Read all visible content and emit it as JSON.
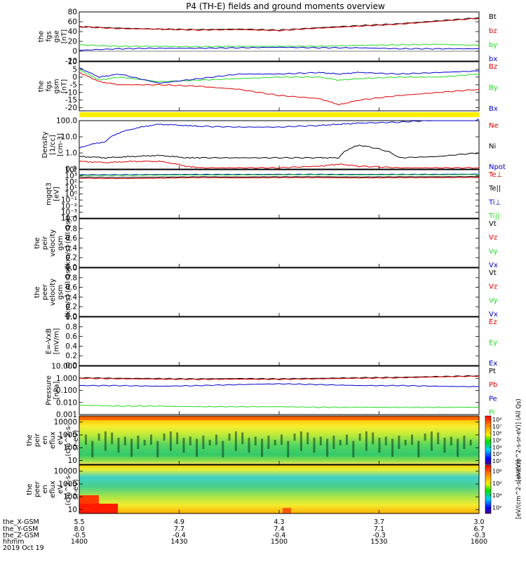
{
  "title": "P4 (TH-E) fields and ground moments overview",
  "colors": {
    "black": "#000000",
    "red": "#dd0000",
    "green": "#22dd22",
    "blue": "#0000cc",
    "bar": "#ffee00"
  },
  "chart_data": [
    {
      "panel": "fgs-gse",
      "type": "line",
      "ylabel": [
        "the",
        "fgs",
        "gse",
        "[nT]"
      ],
      "ylim": [
        -20,
        80
      ],
      "ytick_values": [
        -20,
        0,
        20,
        40,
        60,
        80
      ],
      "ytick_labels": [
        "-20",
        "0",
        "20",
        "40",
        "60",
        "80"
      ],
      "zero_line": true,
      "x": [
        0,
        30,
        60,
        90,
        120,
        150,
        180,
        210,
        240,
        270,
        300
      ],
      "series": [
        {
          "name": "Bt",
          "color": "black",
          "values": [
            50,
            47,
            45,
            44,
            45,
            43,
            48,
            52,
            56,
            62,
            68
          ]
        },
        {
          "name": "bz",
          "color": "red",
          "values": [
            50,
            46,
            45,
            43,
            44,
            42,
            47,
            51,
            55,
            61,
            67
          ]
        },
        {
          "name": "by",
          "color": "green",
          "values": [
            13,
            10,
            10,
            9,
            10,
            10,
            10,
            12,
            13,
            14,
            12
          ]
        },
        {
          "name": "bx",
          "color": "blue",
          "values": [
            2,
            5,
            6,
            6,
            7,
            8,
            7,
            7,
            5,
            5,
            5
          ]
        }
      ]
    },
    {
      "panel": "fgs-gsm",
      "type": "line",
      "ylabel": [
        "the",
        "fgs",
        "gsm",
        "[nT]"
      ],
      "ylim": [
        -22,
        10
      ],
      "ytick_values": [
        -20,
        -15,
        -10,
        -5,
        0,
        5,
        10
      ],
      "ytick_labels": [
        "-20",
        "-15",
        "-10",
        "-5",
        "0",
        "5",
        "10"
      ],
      "zero_line": false,
      "x": [
        0,
        15,
        30,
        60,
        90,
        120,
        150,
        180,
        195,
        210,
        240,
        270,
        300
      ],
      "series": [
        {
          "name": "Bz",
          "color": "red",
          "values": [
            3,
            -3,
            -5,
            -5,
            -6,
            -8,
            -12,
            -14,
            -18,
            -15,
            -12,
            -10,
            -8
          ]
        },
        {
          "name": "By",
          "color": "green",
          "values": [
            5,
            -2,
            0,
            -3,
            -2,
            -1,
            0,
            0,
            -2,
            -1,
            0,
            0,
            2
          ]
        },
        {
          "name": "Bx",
          "color": "blue",
          "values": [
            6,
            0,
            2,
            -4,
            -1,
            2,
            2,
            3,
            2,
            3,
            2,
            3,
            4
          ]
        }
      ]
    },
    {
      "panel": "density",
      "type": "line",
      "yscale": "log",
      "ylabel": [
        "Density",
        "[1/cc]",
        "[cm-3]"
      ],
      "ylim": [
        0.1,
        100
      ],
      "ytick_values": [
        0.1,
        1,
        10,
        100
      ],
      "ytick_labels": [
        "0.1",
        "1.0",
        "10.0",
        "100.0"
      ],
      "zero_line": false,
      "x": [
        0,
        20,
        40,
        60,
        80,
        90,
        120,
        150,
        180,
        195,
        210,
        240,
        270,
        300
      ],
      "series": [
        {
          "name": "Ne",
          "color": "red",
          "values": [
            0.3,
            0.25,
            0.3,
            0.3,
            0.15,
            0.12,
            0.12,
            0.12,
            0.15,
            0.2,
            0.15,
            0.12,
            0.12,
            0.12
          ]
        },
        {
          "name": "Ni",
          "color": "black",
          "values": [
            0.6,
            0.5,
            0.6,
            0.7,
            0.5,
            0.5,
            0.5,
            0.5,
            0.5,
            0.5,
            3,
            0.5,
            0.6,
            1
          ]
        },
        {
          "name": "Npot",
          "color": "blue",
          "values": [
            2,
            5,
            30,
            60,
            50,
            45,
            40,
            40,
            50,
            60,
            70,
            80,
            110,
            130
          ]
        }
      ]
    },
    {
      "panel": "temperature",
      "type": "line",
      "yscale": "log",
      "ylabel": [
        "mgqt3",
        "[eV]"
      ],
      "ylim": [
        0.0001,
        10000
      ],
      "ytick_values": [
        0.0001,
        0.001,
        0.01,
        0.1,
        1,
        10,
        100,
        1000,
        10000
      ],
      "ytick_labels": [
        "10⁻⁴",
        "10⁻³",
        "10⁻²",
        "10⁻¹",
        "10⁰",
        "10¹",
        "10²",
        "10³",
        "10⁴"
      ],
      "zero_line": false,
      "x": [
        0,
        30,
        60,
        90,
        120,
        150,
        180,
        210,
        240,
        270,
        300
      ],
      "series": [
        {
          "name": "Te⊥",
          "color": "red",
          "values": [
            400,
            350,
            400,
            500,
            450,
            500,
            500,
            450,
            500,
            500,
            550
          ]
        },
        {
          "name": "Te||",
          "color": "black",
          "values": [
            600,
            550,
            600,
            700,
            650,
            700,
            700,
            650,
            700,
            700,
            750
          ]
        },
        {
          "name": "Ti⊥",
          "color": "blue",
          "values": [
            1500,
            1500,
            1600,
            1700,
            1700,
            1800,
            1800,
            1700,
            1800,
            1800,
            1900
          ]
        },
        {
          "name": "Ti||",
          "color": "green",
          "values": [
            1200,
            1200,
            1300,
            1400,
            1400,
            1500,
            1500,
            1400,
            1500,
            1500,
            1600
          ]
        }
      ]
    },
    {
      "panel": "peir-velocity",
      "type": "line",
      "ylabel": [
        "the",
        "peir",
        "velocity",
        "gsm",
        "[km/s] (All Qs)"
      ],
      "ylim": [
        0,
        1
      ],
      "ytick_values": [
        0,
        0.2,
        0.4,
        0.6,
        0.8,
        1
      ],
      "ytick_labels": [
        "0.0",
        "0.2",
        "0.4",
        "0.6",
        "0.8",
        "1.0"
      ],
      "zero_line": false,
      "x": [],
      "series": [
        {
          "name": "Vt",
          "color": "black",
          "values": []
        },
        {
          "name": "Vz",
          "color": "red",
          "values": []
        },
        {
          "name": "Vy",
          "color": "green",
          "values": []
        },
        {
          "name": "Vx",
          "color": "blue",
          "values": []
        }
      ]
    },
    {
      "panel": "peer-velocity",
      "type": "line",
      "ylabel": [
        "the",
        "peer",
        "velocity",
        "gsm",
        "[km/s] (All Qs)"
      ],
      "ylim": [
        0,
        1
      ],
      "ytick_values": [
        0,
        0.2,
        0.4,
        0.6,
        0.8,
        1
      ],
      "ytick_labels": [
        "0.0",
        "0.2",
        "0.4",
        "0.6",
        "0.8",
        "1.0"
      ],
      "zero_line": false,
      "x": [],
      "series": [
        {
          "name": "Vt",
          "color": "black",
          "values": []
        },
        {
          "name": "Vz",
          "color": "red",
          "values": []
        },
        {
          "name": "Vy",
          "color": "green",
          "values": []
        },
        {
          "name": "Vx",
          "color": "blue",
          "values": []
        }
      ]
    },
    {
      "panel": "efield",
      "type": "line",
      "ylabel": [
        "E=-VxB",
        "[mV/m]"
      ],
      "ylim": [
        0,
        1
      ],
      "ytick_values": [
        0,
        0.2,
        0.4,
        0.6,
        0.8,
        1
      ],
      "ytick_labels": [
        "0.0",
        "0.2",
        "0.4",
        "0.6",
        "0.8",
        "1.0"
      ],
      "zero_line": false,
      "x": [],
      "series": [
        {
          "name": "Ez",
          "color": "red",
          "values": []
        },
        {
          "name": "Ey",
          "color": "green",
          "values": []
        },
        {
          "name": "Ex",
          "color": "blue",
          "values": []
        }
      ]
    },
    {
      "panel": "pressure",
      "type": "line",
      "yscale": "log",
      "ylabel": [
        "Pressure",
        "[nPa]"
      ],
      "ylim": [
        0.001,
        10
      ],
      "ytick_values": [
        0.001,
        0.01,
        0.1,
        1,
        10
      ],
      "ytick_labels": [
        "0.001",
        "0.010",
        "0.100",
        "1.000",
        "10.000"
      ],
      "zero_line": false,
      "x": [
        0,
        30,
        60,
        90,
        120,
        150,
        180,
        210,
        240,
        270,
        300
      ],
      "series": [
        {
          "name": "Pt",
          "color": "black",
          "values": [
            1.1,
            1.0,
            0.95,
            0.9,
            0.95,
            0.9,
            1.0,
            1.1,
            1.2,
            1.4,
            1.6
          ]
        },
        {
          "name": "Pb",
          "color": "red",
          "values": [
            1.0,
            0.9,
            0.85,
            0.8,
            0.85,
            0.8,
            0.9,
            1.0,
            1.1,
            1.3,
            1.5
          ]
        },
        {
          "name": "Pe",
          "color": "blue",
          "values": [
            0.25,
            0.25,
            0.22,
            0.25,
            0.3,
            0.35,
            0.3,
            0.25,
            0.25,
            0.22,
            0.2
          ]
        },
        {
          "name": "Pi",
          "color": "green",
          "values": [
            0.006,
            0.005,
            0.005,
            0.0045,
            0.0045,
            0.0045,
            0.004,
            0.004,
            0.004,
            0.004,
            0.004
          ]
        }
      ]
    },
    {
      "panel": "peir-spectrogram",
      "type": "heatmap",
      "ylabel": [
        "the",
        "peir",
        "en",
        "eflux",
        "eV",
        "(cm^2-s-",
        "sr-eV)"
      ],
      "ylim": [
        5,
        30000
      ],
      "ytick_values": [
        10,
        100,
        1000,
        10000
      ],
      "ytick_labels": [
        "10",
        "100",
        "1000",
        "10000"
      ],
      "colorbar_ticks": [
        "10²",
        "10³",
        "10⁴",
        "10⁵",
        "10⁶",
        "10⁷",
        "10⁸"
      ],
      "colorbar_label": "[eV/(cm^2-s-sr-eV)] (All Qs)"
    },
    {
      "panel": "peer-spectrogram",
      "type": "heatmap",
      "ylabel": [
        "the",
        "peer",
        "en",
        "eflux",
        "eV",
        "(cm^2-s-",
        "sr-eV)"
      ],
      "ylim": [
        5,
        30000
      ],
      "ytick_values": [
        10,
        100,
        1000,
        10000
      ],
      "ytick_labels": [
        "10",
        "100",
        "1000",
        "10000"
      ],
      "colorbar_ticks": [
        "10²",
        "10⁴",
        "10⁶",
        "10⁸"
      ],
      "colorbar_label": "[eV/(cm^2-s-sr-eV)]"
    }
  ],
  "x_axis": {
    "rows": [
      {
        "label": "the_X-GSM",
        "values": [
          "5.5",
          "4.9",
          "4.3",
          "3.7",
          "3.0"
        ]
      },
      {
        "label": "the_Y-GSM",
        "values": [
          "8.0",
          "7.7",
          "7.4",
          "7.1",
          "6.7"
        ]
      },
      {
        "label": "the_Z-GSM",
        "values": [
          "-0.5",
          "-0.4",
          "-0.4",
          "-0.3",
          "-0.3"
        ]
      },
      {
        "label": "hhmm",
        "values": [
          "1400",
          "1430",
          "1500",
          "1530",
          "1600"
        ]
      }
    ],
    "date": "2019 Oct 19"
  }
}
